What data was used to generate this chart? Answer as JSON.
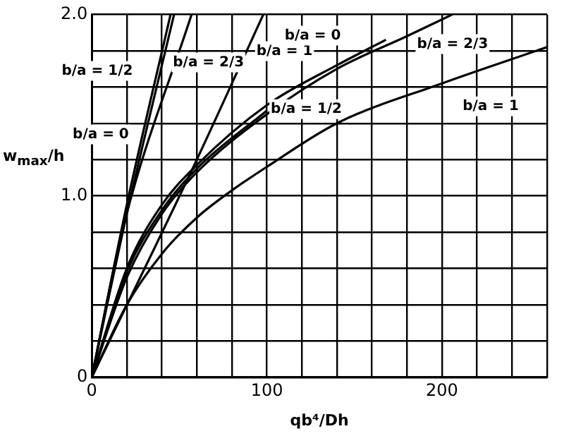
{
  "chart_data": {
    "type": "line",
    "xlabel": "qb⁴/Dh",
    "ylabel": "w$_{max}$/h",
    "xlim": [
      0,
      260
    ],
    "ylim": [
      0,
      2.0
    ],
    "xticks": [
      0,
      {
        "value": 20,
        "label": null
      },
      {
        "value": 40,
        "label": null
      },
      {
        "value": 60,
        "label": null
      },
      {
        "value": 80,
        "label": null
      },
      100,
      {
        "value": 120,
        "label": null
      },
      {
        "value": 140,
        "label": null
      },
      {
        "value": 160,
        "label": null
      },
      {
        "value": 180,
        "label": null
      },
      200,
      {
        "value": 220,
        "label": null
      },
      {
        "value": 240,
        "label": null
      },
      {
        "value": 260,
        "label": null
      }
    ],
    "yticks": [
      0,
      {
        "value": 0.2,
        "label": null
      },
      {
        "value": 0.4,
        "label": null
      },
      {
        "value": 0.6,
        "label": null
      },
      {
        "value": 0.8,
        "label": null
      },
      {
        "value": 1.0,
        "label": "1.0"
      },
      {
        "value": 1.2,
        "label": null
      },
      {
        "value": 1.4,
        "label": null
      },
      {
        "value": 1.6,
        "label": null
      },
      {
        "value": 1.8,
        "label": null
      },
      {
        "value": 2.0,
        "label": "2.0"
      }
    ],
    "grid": true,
    "legend": false,
    "marker": "none",
    "line_style": "solid",
    "series": [
      {
        "name": "b/a = 0",
        "color": "#000000",
        "x": [
          0,
          20,
          47
        ],
        "values": [
          0,
          0.9,
          2.0
        ]
      },
      {
        "name": "b/a = 1/2",
        "color": "#000000",
        "x": [
          0,
          20,
          45
        ],
        "values": [
          0,
          0.95,
          2.0
        ]
      },
      {
        "name": "b/a = 2/3",
        "color": "#000000",
        "x": [
          0,
          18,
          57
        ],
        "values": [
          0,
          0.83,
          2.0
        ]
      },
      {
        "name": "b/a = 1",
        "color": "#000000",
        "x": [
          0,
          60,
          98
        ],
        "values": [
          0,
          1.2,
          2.0
        ]
      },
      {
        "name": "b/a = 0",
        "color": "#000000",
        "x": [
          0,
          20,
          40,
          60,
          100,
          140,
          168
        ],
        "values": [
          0,
          0.6,
          0.95,
          1.17,
          1.5,
          1.72,
          1.86
        ]
      },
      {
        "name": "b/a = 1/2",
        "color": "#000000",
        "x": [
          0,
          20,
          40,
          60,
          100
        ],
        "values": [
          0,
          0.58,
          0.92,
          1.15,
          1.47
        ]
      },
      {
        "name": "b/a = 2/3",
        "color": "#000000",
        "x": [
          0,
          20,
          40,
          60,
          100,
          140,
          180,
          206
        ],
        "values": [
          0,
          0.55,
          0.9,
          1.13,
          1.45,
          1.7,
          1.88,
          2.0
        ]
      },
      {
        "name": "b/a = 1",
        "color": "#000000",
        "x": [
          0,
          20,
          40,
          60,
          80,
          100,
          140,
          200,
          260
        ],
        "values": [
          0,
          0.4,
          0.68,
          0.88,
          1.03,
          1.16,
          1.4,
          1.62,
          1.82
        ]
      }
    ]
  }
}
